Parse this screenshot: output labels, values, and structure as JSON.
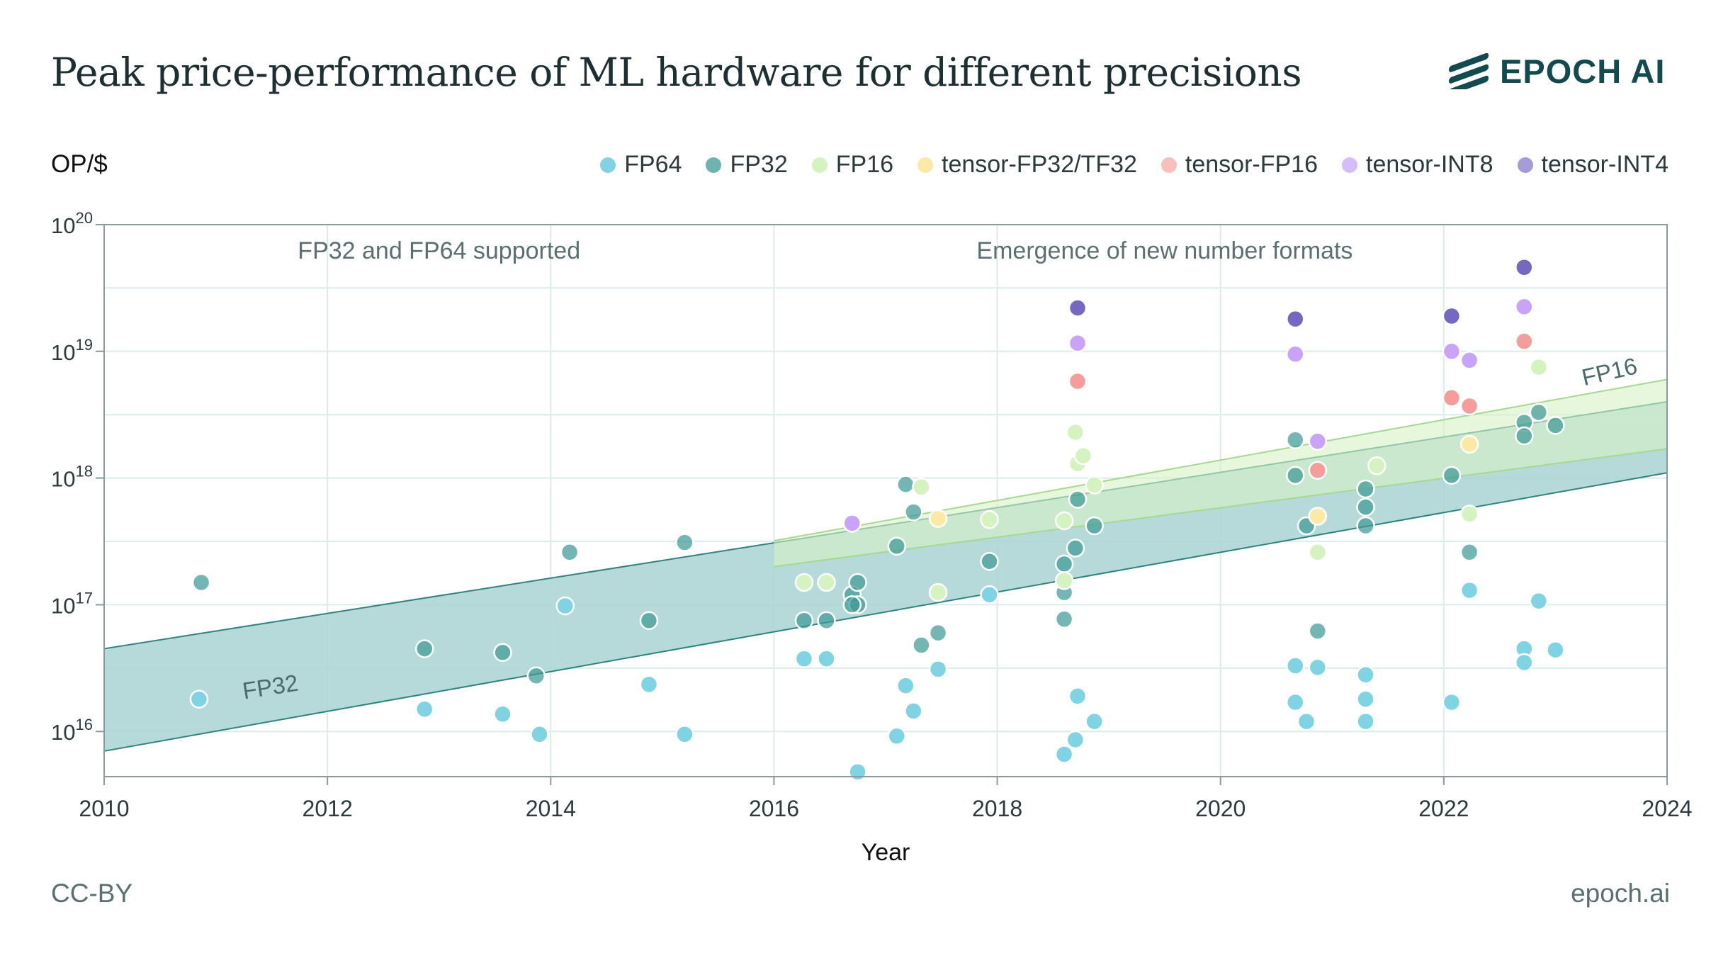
{
  "header": {
    "title": "Peak price-performance of ML hardware for different precisions",
    "brand": "EPOCH AI",
    "y_unit_label": "OP/$"
  },
  "footer": {
    "license": "CC-BY",
    "site": "epoch.ai"
  },
  "colors": {
    "FP64": "#7fd3e3",
    "FP32": "#3e9a96",
    "FP16": "#d4f3c0",
    "tensor-FP32/TF32": "#fde9a6",
    "tensor-FP16": "#f59d9b",
    "tensor-INT8": "#c9a3f7",
    "tensor-INT4": "#8c7fcc",
    "fp32_band": "#a9d4d3",
    "fp16_band": "#d7f2c4",
    "grid": "#dcebea",
    "axis": "#8a9a9d",
    "brand": "#134a4e"
  },
  "chart_data": {
    "type": "scatter",
    "xlabel": "Year",
    "ylabel": "OP/$",
    "xlim": [
      2010,
      2024
    ],
    "ylim": [
      4400000000000000.0,
      1e+20
    ],
    "yscale": "log",
    "x_ticks": [
      2010,
      2012,
      2014,
      2016,
      2018,
      2020,
      2022,
      2024
    ],
    "y_ticks": [
      {
        "value": 1e+16,
        "base": "10",
        "exp": "16"
      },
      {
        "value": 1e+17,
        "base": "10",
        "exp": "17"
      },
      {
        "value": 1e+18,
        "base": "10",
        "exp": "18"
      },
      {
        "value": 1e+19,
        "base": "10",
        "exp": "19"
      },
      {
        "value": 1e+20,
        "base": "10",
        "exp": "20"
      }
    ],
    "grid": true,
    "legend_position": "top",
    "annotations": [
      {
        "text": "FP32 and FP64 supported",
        "x": 2013,
        "y": 6.2e+19
      },
      {
        "text": "Emergence of new number formats",
        "x": 2019.5,
        "y": 6.2e+19
      }
    ],
    "trend_labels": [
      {
        "text": "FP32",
        "x": 2011.5,
        "y": 1.95e+16
      },
      {
        "text": "FP16",
        "x": 2023.5,
        "y": 6e+18
      }
    ],
    "bands": [
      {
        "name": "FP32",
        "x": [
          2010,
          2024
        ],
        "lower": [
          7000000000000000.0,
          1.1e+18
        ],
        "upper": [
          4.5e+16,
          4e+18
        ]
      },
      {
        "name": "FP16",
        "x": [
          2016,
          2024
        ],
        "lower": [
          2e+17,
          1.7e+18
        ],
        "upper": [
          3.2e+17,
          6e+18
        ]
      }
    ],
    "series": [
      {
        "name": "FP64",
        "points": [
          [
            2010.85,
            1.8e+16
          ],
          [
            2012.87,
            1.5e+16
          ],
          [
            2013.57,
            1.37e+16
          ],
          [
            2013.9,
            9500000000000000.0
          ],
          [
            2014.13,
            9.8e+16
          ],
          [
            2014.88,
            2.35e+16
          ],
          [
            2015.2,
            9500000000000000.0
          ],
          [
            2016.27,
            3.75e+16
          ],
          [
            2016.47,
            3.75e+16
          ],
          [
            2016.75,
            4800000000000000.0
          ],
          [
            2017.1,
            9200000000000000.0
          ],
          [
            2017.18,
            2.3e+16
          ],
          [
            2017.25,
            1.45e+16
          ],
          [
            2017.47,
            3.1e+16
          ],
          [
            2017.93,
            1.2e+17
          ],
          [
            2018.6,
            6600000000000000.0
          ],
          [
            2018.7,
            8600000000000000.0
          ],
          [
            2018.72,
            1.9e+16
          ],
          [
            2018.87,
            1.2e+16
          ],
          [
            2020.67,
            3.3e+16
          ],
          [
            2020.67,
            1.7e+16
          ],
          [
            2020.77,
            1.2e+16
          ],
          [
            2020.87,
            3.2e+16
          ],
          [
            2021.3,
            2.8e+16
          ],
          [
            2021.3,
            1.8e+16
          ],
          [
            2021.3,
            1.2e+16
          ],
          [
            2022.07,
            1.7e+16
          ],
          [
            2022.23,
            1.3e+17
          ],
          [
            2022.72,
            4.5e+16
          ],
          [
            2022.72,
            3.5e+16
          ],
          [
            2022.85,
            1.07e+17
          ],
          [
            2023.0,
            4.4e+16
          ]
        ]
      },
      {
        "name": "FP32",
        "points": [
          [
            2010.87,
            1.5e+17
          ],
          [
            2012.87,
            4.5e+16
          ],
          [
            2013.57,
            4.2e+16
          ],
          [
            2013.87,
            2.75e+16
          ],
          [
            2014.17,
            2.6e+17
          ],
          [
            2014.88,
            7.5e+16
          ],
          [
            2015.2,
            3.1e+17
          ],
          [
            2016.27,
            7.5e+16
          ],
          [
            2016.47,
            7.5e+16
          ],
          [
            2016.7,
            1.2e+17
          ],
          [
            2016.75,
            1.5e+17
          ],
          [
            2016.75,
            1e+17
          ],
          [
            2016.7,
            1e+17
          ],
          [
            2017.1,
            2.9e+17
          ],
          [
            2017.18,
            8.9e+17
          ],
          [
            2017.25,
            5.4e+17
          ],
          [
            2017.32,
            4.8e+16
          ],
          [
            2017.47,
            6e+16
          ],
          [
            2017.93,
            2.2e+17
          ],
          [
            2018.6,
            2.1e+17
          ],
          [
            2018.6,
            1.25e+17
          ],
          [
            2018.6,
            7.7e+16
          ],
          [
            2018.7,
            2.8e+17
          ],
          [
            2018.72,
            6.8e+17
          ],
          [
            2018.87,
            4.2e+17
          ],
          [
            2020.67,
            2e+18
          ],
          [
            2020.67,
            1.05e+18
          ],
          [
            2020.77,
            4.2e+17
          ],
          [
            2020.87,
            6.2e+16
          ],
          [
            2021.3,
            8.2e+17
          ],
          [
            2021.3,
            5.9e+17
          ],
          [
            2021.3,
            4.2e+17
          ],
          [
            2022.07,
            1.05e+18
          ],
          [
            2022.23,
            2.6e+17
          ],
          [
            2022.72,
            2.75e+18
          ],
          [
            2022.72,
            2.15e+18
          ],
          [
            2022.85,
            3.3e+18
          ],
          [
            2023.0,
            2.6e+18
          ]
        ]
      },
      {
        "name": "FP16",
        "points": [
          [
            2016.27,
            1.5e+17
          ],
          [
            2016.47,
            1.5e+17
          ],
          [
            2017.32,
            8.5e+17
          ],
          [
            2017.47,
            1.25e+17
          ],
          [
            2017.93,
            4.7e+17
          ],
          [
            2018.6,
            4.6e+17
          ],
          [
            2018.6,
            1.55e+17
          ],
          [
            2018.7,
            2.3e+18
          ],
          [
            2018.72,
            1.3e+18
          ],
          [
            2018.77,
            1.5e+18
          ],
          [
            2018.87,
            8.8e+17
          ],
          [
            2020.87,
            2.6e+17
          ],
          [
            2021.4,
            1.25e+18
          ],
          [
            2022.23,
            5.2e+17
          ],
          [
            2022.85,
            7.5e+18
          ]
        ]
      },
      {
        "name": "tensor-FP32/TF32",
        "points": [
          [
            2017.47,
            4.8e+17
          ],
          [
            2020.87,
            5e+17
          ],
          [
            2022.23,
            1.85e+18
          ]
        ]
      },
      {
        "name": "tensor-FP16",
        "points": [
          [
            2018.72,
            5.8e+18
          ],
          [
            2020.87,
            1.15e+18
          ],
          [
            2022.07,
            4.3e+18
          ],
          [
            2022.23,
            3.7e+18
          ],
          [
            2022.72,
            1.2e+19
          ]
        ]
      },
      {
        "name": "tensor-INT8",
        "points": [
          [
            2016.7,
            4.4e+17
          ],
          [
            2018.72,
            1.16e+19
          ],
          [
            2020.67,
            9.5e+18
          ],
          [
            2020.87,
            1.95e+18
          ],
          [
            2022.07,
            1e+19
          ],
          [
            2022.23,
            8.5e+18
          ],
          [
            2022.72,
            2.25e+19
          ]
        ]
      },
      {
        "name": "tensor-INT4",
        "points": [
          [
            2018.72,
            2.2e+19
          ],
          [
            2020.67,
            1.8e+19
          ],
          [
            2022.07,
            1.9e+19
          ],
          [
            2022.72,
            4.6e+19
          ]
        ]
      }
    ]
  }
}
